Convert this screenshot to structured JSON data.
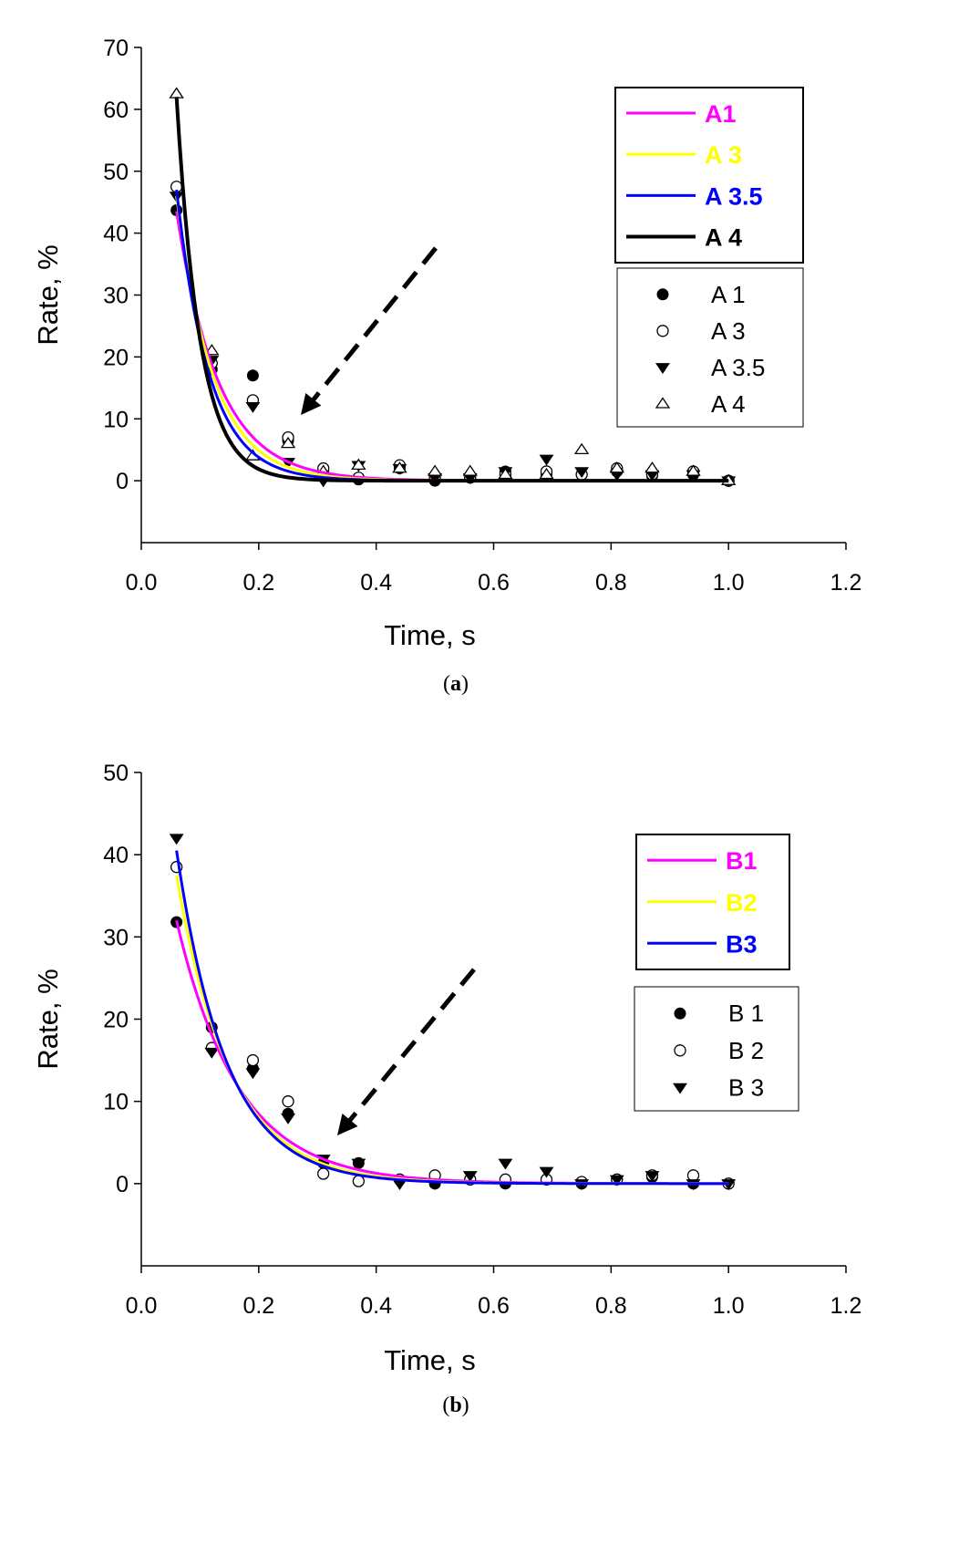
{
  "chart_data": [
    {
      "type": "scatter",
      "panel": "a",
      "caption_open": "(",
      "caption_letter": "a",
      "caption_close": ")",
      "xlabel": "Time, s",
      "ylabel": "Rate, %",
      "xlim": [
        0.0,
        1.2
      ],
      "ylim": [
        -10,
        70
      ],
      "xticks": [
        0.0,
        0.2,
        0.4,
        0.6,
        0.8,
        1.0,
        1.2
      ],
      "xtick_labels": [
        "0.0",
        "0.2",
        "0.4",
        "0.6",
        "0.8",
        "1.0",
        "1.2"
      ],
      "yticks": [
        0,
        10,
        20,
        30,
        40,
        50,
        60,
        70
      ],
      "ytick_labels": [
        "0",
        "10",
        "20",
        "30",
        "40",
        "50",
        "60",
        "70"
      ],
      "fit_legend": [
        {
          "label": "A1",
          "color": "#ff00ff"
        },
        {
          "label": "A 3",
          "color": "#ffff00"
        },
        {
          "label": "A 3.5",
          "color": "#0000ff"
        },
        {
          "label": "A 4",
          "color": "#000000"
        }
      ],
      "fits": [
        {
          "name": "A1",
          "color": "#ff00ff",
          "a": 43.5,
          "k": 14,
          "width": 3
        },
        {
          "name": "A 3",
          "color": "#ffff00",
          "a": 46.0,
          "k": 16,
          "width": 3
        },
        {
          "name": "A 3.5",
          "color": "#0000ff",
          "a": 47.0,
          "k": 18,
          "width": 3
        },
        {
          "name": "A 4",
          "color": "#000000",
          "a": 62.0,
          "k": 25,
          "width": 4
        }
      ],
      "x": [
        0.06,
        0.12,
        0.19,
        0.25,
        0.31,
        0.37,
        0.44,
        0.5,
        0.56,
        0.62,
        0.69,
        0.75,
        0.81,
        0.87,
        0.94,
        1.0
      ],
      "series": [
        {
          "name": "A 1",
          "marker": "filled-circle",
          "values": [
            43.7,
            18.0,
            17.0,
            6.5,
            1.5,
            0.2,
            2.0,
            0.0,
            0.5,
            1.5,
            1.0,
            1.0,
            1.5,
            0.8,
            1.0,
            0.0
          ]
        },
        {
          "name": "A 3",
          "marker": "open-circle",
          "values": [
            47.5,
            19.0,
            13.0,
            7.0,
            2.0,
            0.5,
            2.5,
            0.5,
            0.5,
            1.0,
            1.5,
            1.0,
            2.0,
            1.0,
            1.5,
            0.0
          ]
        },
        {
          "name": "A 3.5",
          "marker": "filled-triangle-down",
          "values": [
            46.0,
            19.5,
            12.0,
            3.0,
            0.0,
            2.5,
            2.0,
            0.5,
            0.5,
            1.5,
            3.5,
            1.5,
            1.0,
            1.0,
            1.0,
            0.0
          ]
        },
        {
          "name": "A 4",
          "marker": "open-triangle-up",
          "values": [
            62.5,
            21.0,
            4.0,
            6.0,
            1.5,
            2.5,
            2.0,
            1.5,
            1.5,
            1.0,
            1.0,
            5.0,
            2.0,
            2.0,
            1.5,
            0.0
          ]
        }
      ],
      "annotation": "dashed arrow pointing toward the decay curves"
    },
    {
      "type": "scatter",
      "panel": "b",
      "caption_open": "(",
      "caption_letter": "b",
      "caption_close": ")",
      "xlabel": "Time, s",
      "ylabel": "Rate, %",
      "xlim": [
        0.0,
        1.2
      ],
      "ylim": [
        -10,
        50
      ],
      "xticks": [
        0.0,
        0.2,
        0.4,
        0.6,
        0.8,
        1.0,
        1.2
      ],
      "xtick_labels": [
        "0.0",
        "0.2",
        "0.4",
        "0.6",
        "0.8",
        "1.0",
        "1.2"
      ],
      "yticks": [
        0,
        10,
        20,
        30,
        40,
        50
      ],
      "ytick_labels": [
        "0",
        "10",
        "20",
        "30",
        "40",
        "50"
      ],
      "fit_legend": [
        {
          "label": "B1",
          "color": "#ff00ff"
        },
        {
          "label": "B2",
          "color": "#ffff00"
        },
        {
          "label": "B3",
          "color": "#0000ff"
        }
      ],
      "fits": [
        {
          "name": "B1",
          "color": "#ff00ff",
          "a": 32.0,
          "k": 9.5,
          "width": 3
        },
        {
          "name": "B2",
          "color": "#ffff00",
          "a": 37.5,
          "k": 11.0,
          "width": 3
        },
        {
          "name": "B3",
          "color": "#0000ff",
          "a": 40.5,
          "k": 11.8,
          "width": 3
        }
      ],
      "x": [
        0.06,
        0.12,
        0.19,
        0.25,
        0.31,
        0.37,
        0.44,
        0.5,
        0.56,
        0.62,
        0.69,
        0.75,
        0.81,
        0.87,
        0.94,
        1.0
      ],
      "series": [
        {
          "name": "B 1",
          "marker": "filled-circle",
          "values": [
            31.8,
            19.0,
            14.0,
            8.5,
            2.5,
            2.5,
            0.5,
            0.0,
            0.5,
            0.0,
            0.5,
            0.0,
            0.5,
            0.8,
            0.0,
            0.0
          ]
        },
        {
          "name": "B 2",
          "marker": "open-circle",
          "values": [
            38.5,
            16.5,
            15.0,
            10.0,
            1.2,
            0.3,
            0.5,
            1.0,
            0.5,
            0.5,
            0.5,
            0.2,
            0.5,
            1.0,
            1.0,
            0.0
          ]
        },
        {
          "name": "B 3",
          "marker": "filled-triangle-down",
          "values": [
            42.0,
            16.0,
            13.5,
            8.0,
            3.0,
            2.5,
            0.0,
            0.0,
            1.0,
            2.5,
            1.5,
            0.0,
            0.5,
            1.0,
            0.0,
            0.0
          ]
        }
      ],
      "annotation": "dashed arrow pointing toward the decay curves"
    }
  ]
}
